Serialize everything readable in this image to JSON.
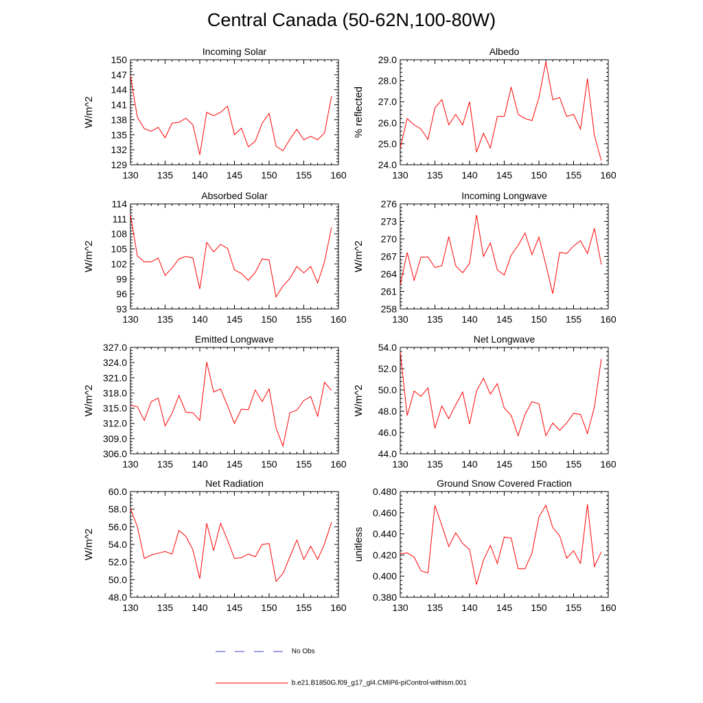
{
  "page": {
    "title": "Central Canada (50-62N,100-80W)",
    "legend": [
      {
        "label": "No Obs",
        "color": "#3b3bd0",
        "dash": true
      },
      {
        "label": "b.e21.B1850G.f09_g17_gl4.CMIP6-piControl-withism.001",
        "color": "#ff0000",
        "dash": false
      }
    ]
  },
  "chart_data": [
    {
      "type": "line",
      "title": "Incoming Solar",
      "ylabel": "W/m^2",
      "xlabel": "",
      "xlim": [
        130,
        160
      ],
      "ylim": [
        129,
        150
      ],
      "xticks": [
        130,
        135,
        140,
        145,
        150,
        155,
        160
      ],
      "yticks": [
        "129",
        "132",
        "135",
        "138",
        "141",
        "144",
        "147",
        "150"
      ],
      "x": [
        130,
        131,
        132,
        133,
        134,
        135,
        136,
        137,
        138,
        139,
        140,
        141,
        142,
        143,
        144,
        145,
        146,
        147,
        148,
        149,
        150,
        151,
        152,
        153,
        154,
        155,
        156,
        157,
        158,
        159
      ],
      "series": [
        {
          "color": "#ff0000",
          "values": [
            146.8,
            138.5,
            136.2,
            135.7,
            136.5,
            134.4,
            137.3,
            137.5,
            138.3,
            137.0,
            131.0,
            139.5,
            138.8,
            139.5,
            140.7,
            135.0,
            136.3,
            132.6,
            133.7,
            137.3,
            139.3,
            132.7,
            131.8,
            134.1,
            136.1,
            134.0,
            134.7,
            134.0,
            135.4,
            142.7
          ]
        }
      ]
    },
    {
      "type": "line",
      "title": "Albedo",
      "ylabel": "% reflected",
      "xlabel": "",
      "xlim": [
        130,
        160
      ],
      "ylim": [
        24.0,
        29.0
      ],
      "xticks": [
        130,
        135,
        140,
        145,
        150,
        155,
        160
      ],
      "yticks": [
        "24.0",
        "25.0",
        "26.0",
        "27.0",
        "28.0",
        "29.0"
      ],
      "x": [
        130,
        131,
        132,
        133,
        134,
        135,
        136,
        137,
        138,
        139,
        140,
        141,
        142,
        143,
        144,
        145,
        146,
        147,
        148,
        149,
        150,
        151,
        152,
        153,
        154,
        155,
        156,
        157,
        158,
        159
      ],
      "series": [
        {
          "color": "#ff0000",
          "values": [
            24.8,
            26.2,
            25.9,
            25.7,
            25.2,
            26.7,
            27.1,
            25.9,
            26.4,
            25.9,
            27.0,
            24.6,
            25.5,
            24.8,
            26.3,
            26.3,
            27.7,
            26.4,
            26.2,
            26.1,
            27.2,
            28.9,
            27.1,
            27.2,
            26.3,
            26.4,
            25.7,
            28.1,
            25.4,
            24.2
          ]
        }
      ]
    },
    {
      "type": "line",
      "title": "Absorbed Solar",
      "ylabel": "W/m^2",
      "xlabel": "",
      "xlim": [
        130,
        160
      ],
      "ylim": [
        93,
        114
      ],
      "xticks": [
        130,
        135,
        140,
        145,
        150,
        155,
        160
      ],
      "yticks": [
        "93",
        "96",
        "99",
        "102",
        "105",
        "108",
        "111",
        "114"
      ],
      "x": [
        130,
        131,
        132,
        133,
        134,
        135,
        136,
        137,
        138,
        139,
        140,
        141,
        142,
        143,
        144,
        145,
        146,
        147,
        148,
        149,
        150,
        151,
        152,
        153,
        154,
        155,
        156,
        157,
        158,
        159
      ],
      "series": [
        {
          "color": "#ff0000",
          "values": [
            111.8,
            103.6,
            102.4,
            102.4,
            103.2,
            99.7,
            101.2,
            103.0,
            103.5,
            103.2,
            97.0,
            106.3,
            104.4,
            105.9,
            105.1,
            100.8,
            100.1,
            98.7,
            100.3,
            103.0,
            102.8,
            95.4,
            97.6,
            99.1,
            101.5,
            100.2,
            101.5,
            98.2,
            102.5,
            109.3
          ]
        }
      ]
    },
    {
      "type": "line",
      "title": "Incoming Longwave",
      "ylabel": "W/m^2",
      "xlabel": "",
      "xlim": [
        130,
        160
      ],
      "ylim": [
        258,
        276
      ],
      "xticks": [
        130,
        135,
        140,
        145,
        150,
        155,
        160
      ],
      "yticks": [
        "258",
        "261",
        "264",
        "267",
        "270",
        "273",
        "276"
      ],
      "x": [
        130,
        131,
        132,
        133,
        134,
        135,
        136,
        137,
        138,
        139,
        140,
        141,
        142,
        143,
        144,
        145,
        146,
        147,
        148,
        149,
        150,
        151,
        152,
        153,
        154,
        155,
        156,
        157,
        158,
        159
      ],
      "series": [
        {
          "color": "#ff0000",
          "values": [
            262.1,
            267.7,
            262.9,
            266.9,
            266.9,
            265.1,
            265.4,
            270.4,
            265.4,
            264.2,
            265.8,
            274.1,
            267.0,
            269.3,
            264.7,
            263.8,
            267.2,
            268.9,
            271.0,
            267.3,
            270.3,
            265.6,
            260.6,
            267.7,
            267.5,
            268.8,
            269.7,
            267.5,
            271.8,
            265.6
          ]
        }
      ]
    },
    {
      "type": "line",
      "title": "Emitted Longwave",
      "ylabel": "W/m^2",
      "xlabel": "",
      "xlim": [
        130,
        160
      ],
      "ylim": [
        306.0,
        327.0
      ],
      "xticks": [
        130,
        135,
        140,
        145,
        150,
        155,
        160
      ],
      "yticks": [
        "306.0",
        "309.0",
        "312.0",
        "315.0",
        "318.0",
        "321.0",
        "324.0",
        "327.0"
      ],
      "x": [
        130,
        131,
        132,
        133,
        134,
        135,
        136,
        137,
        138,
        139,
        140,
        141,
        142,
        143,
        144,
        145,
        146,
        147,
        148,
        149,
        150,
        151,
        152,
        153,
        154,
        155,
        156,
        157,
        158,
        159
      ],
      "series": [
        {
          "color": "#ff0000",
          "values": [
            315.6,
            315.3,
            312.6,
            316.3,
            317.0,
            311.5,
            314.0,
            317.5,
            314.2,
            314.1,
            312.6,
            324.1,
            318.2,
            318.8,
            315.5,
            312.0,
            314.8,
            314.7,
            318.6,
            316.3,
            318.8,
            311.1,
            307.5,
            314.1,
            314.6,
            316.5,
            317.3,
            313.4,
            320.1,
            318.5
          ]
        }
      ]
    },
    {
      "type": "line",
      "title": "Net Longwave",
      "ylabel": "W/m^2",
      "xlabel": "",
      "xlim": [
        130,
        160
      ],
      "ylim": [
        44.0,
        54.0
      ],
      "xticks": [
        130,
        135,
        140,
        145,
        150,
        155,
        160
      ],
      "yticks": [
        "44.0",
        "46.0",
        "48.0",
        "50.0",
        "52.0",
        "54.0"
      ],
      "x": [
        130,
        131,
        132,
        133,
        134,
        135,
        136,
        137,
        138,
        139,
        140,
        141,
        142,
        143,
        144,
        145,
        146,
        147,
        148,
        149,
        150,
        151,
        152,
        153,
        154,
        155,
        156,
        157,
        158,
        159
      ],
      "series": [
        {
          "color": "#ff0000",
          "values": [
            53.6,
            47.6,
            49.9,
            49.4,
            50.2,
            46.4,
            48.5,
            47.3,
            48.6,
            49.8,
            46.8,
            49.9,
            51.1,
            49.6,
            50.6,
            48.3,
            47.6,
            45.7,
            47.7,
            48.9,
            48.7,
            45.7,
            46.9,
            46.2,
            46.9,
            47.8,
            47.7,
            45.9,
            48.4,
            52.9
          ]
        }
      ]
    },
    {
      "type": "line",
      "title": "Net Radiation",
      "ylabel": "W/m^2",
      "xlabel": "",
      "xlim": [
        130,
        160
      ],
      "ylim": [
        48.0,
        60.0
      ],
      "xticks": [
        130,
        135,
        140,
        145,
        150,
        155,
        160
      ],
      "yticks": [
        "48.0",
        "50.0",
        "52.0",
        "54.0",
        "56.0",
        "58.0",
        "60.0"
      ],
      "x": [
        130,
        131,
        132,
        133,
        134,
        135,
        136,
        137,
        138,
        139,
        140,
        141,
        142,
        143,
        144,
        145,
        146,
        147,
        148,
        149,
        150,
        151,
        152,
        153,
        154,
        155,
        156,
        157,
        158,
        159
      ],
      "series": [
        {
          "color": "#ff0000",
          "values": [
            58.1,
            56.0,
            52.4,
            52.8,
            53.0,
            53.2,
            52.9,
            55.6,
            54.9,
            53.4,
            50.1,
            56.4,
            53.3,
            56.4,
            54.5,
            52.4,
            52.5,
            52.9,
            52.6,
            54.0,
            54.1,
            49.8,
            50.7,
            52.6,
            54.5,
            52.3,
            53.8,
            52.3,
            54.1,
            56.5
          ]
        }
      ]
    },
    {
      "type": "line",
      "title": "Ground Snow Covered Fraction",
      "ylabel": "unitless",
      "xlabel": "",
      "xlim": [
        130,
        160
      ],
      "ylim": [
        0.38,
        0.48
      ],
      "xticks": [
        130,
        135,
        140,
        145,
        150,
        155,
        160
      ],
      "yticks": [
        "0.380",
        "0.400",
        "0.420",
        "0.440",
        "0.460",
        "0.480"
      ],
      "x": [
        130,
        131,
        132,
        133,
        134,
        135,
        136,
        137,
        138,
        139,
        140,
        141,
        142,
        143,
        144,
        145,
        146,
        147,
        148,
        149,
        150,
        151,
        152,
        153,
        154,
        155,
        156,
        157,
        158,
        159
      ],
      "series": [
        {
          "color": "#ff0000",
          "values": [
            0.421,
            0.422,
            0.418,
            0.405,
            0.403,
            0.467,
            0.448,
            0.428,
            0.441,
            0.431,
            0.425,
            0.392,
            0.415,
            0.429,
            0.412,
            0.437,
            0.436,
            0.407,
            0.407,
            0.422,
            0.456,
            0.467,
            0.446,
            0.438,
            0.417,
            0.424,
            0.412,
            0.468,
            0.409,
            0.423
          ]
        }
      ]
    }
  ]
}
